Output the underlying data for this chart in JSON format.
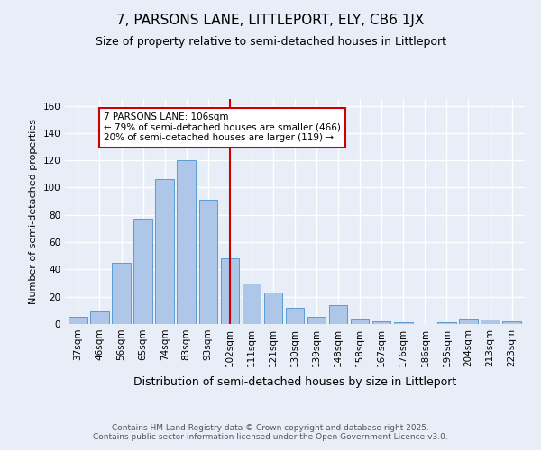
{
  "title1": "7, PARSONS LANE, LITTLEPORT, ELY, CB6 1JX",
  "title2": "Size of property relative to semi-detached houses in Littleport",
  "xlabel": "Distribution of semi-detached houses by size in Littleport",
  "ylabel": "Number of semi-detached properties",
  "categories": [
    "37sqm",
    "46sqm",
    "56sqm",
    "65sqm",
    "74sqm",
    "83sqm",
    "93sqm",
    "102sqm",
    "111sqm",
    "121sqm",
    "130sqm",
    "139sqm",
    "148sqm",
    "158sqm",
    "167sqm",
    "176sqm",
    "186sqm",
    "195sqm",
    "204sqm",
    "213sqm",
    "223sqm"
  ],
  "values": [
    5,
    9,
    45,
    77,
    106,
    120,
    91,
    48,
    30,
    23,
    12,
    5,
    14,
    4,
    2,
    1,
    0,
    1,
    4,
    3,
    2
  ],
  "bar_color": "#aec6e8",
  "bar_edge_color": "#5b9bd5",
  "vline_x_idx": 7.5,
  "vline_color": "#cc0000",
  "annotation_text": "7 PARSONS LANE: 106sqm\n← 79% of semi-detached houses are smaller (466)\n20% of semi-detached houses are larger (119) →",
  "annotation_box_color": "#ffffff",
  "annotation_box_edge": "#cc0000",
  "ylim": [
    0,
    165
  ],
  "yticks": [
    0,
    20,
    40,
    60,
    80,
    100,
    120,
    140,
    160
  ],
  "footer": "Contains HM Land Registry data © Crown copyright and database right 2025.\nContains public sector information licensed under the Open Government Licence v3.0.",
  "bg_color": "#e8eef7",
  "grid_color": "#ffffff",
  "title1_fontsize": 11,
  "title2_fontsize": 9,
  "xlabel_fontsize": 9,
  "ylabel_fontsize": 8,
  "tick_fontsize": 7.5,
  "annotation_fontsize": 7.5,
  "footer_fontsize": 6.5
}
